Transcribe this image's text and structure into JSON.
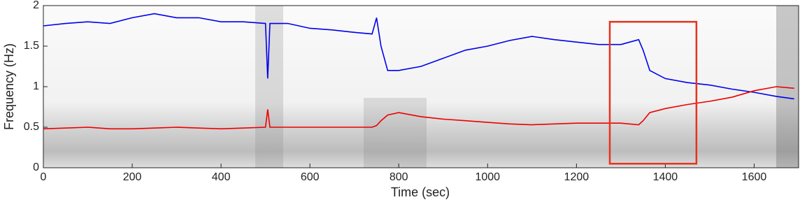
{
  "chart_data": {
    "type": "line",
    "x_label": "Time (sec)",
    "y_label": "Frequency (Hz)",
    "x": [
      0,
      50,
      100,
      150,
      200,
      250,
      300,
      350,
      400,
      450,
      500,
      505,
      510,
      550,
      600,
      650,
      700,
      740,
      750,
      760,
      775,
      800,
      850,
      900,
      950,
      1000,
      1050,
      1100,
      1150,
      1200,
      1250,
      1300,
      1340,
      1350,
      1365,
      1400,
      1450,
      1500,
      1550,
      1600,
      1650,
      1690
    ],
    "series": [
      {
        "color": "#0000ee",
        "values": [
          1.75,
          1.78,
          1.8,
          1.78,
          1.85,
          1.9,
          1.85,
          1.85,
          1.8,
          1.8,
          1.78,
          1.1,
          1.78,
          1.78,
          1.72,
          1.7,
          1.67,
          1.65,
          1.85,
          1.5,
          1.2,
          1.2,
          1.25,
          1.35,
          1.45,
          1.5,
          1.57,
          1.62,
          1.58,
          1.55,
          1.52,
          1.52,
          1.58,
          1.45,
          1.2,
          1.1,
          1.05,
          1.02,
          0.97,
          0.93,
          0.88,
          0.85
        ]
      },
      {
        "color": "#ee0000",
        "values": [
          0.48,
          0.49,
          0.5,
          0.48,
          0.48,
          0.49,
          0.5,
          0.49,
          0.48,
          0.49,
          0.5,
          0.72,
          0.5,
          0.5,
          0.5,
          0.5,
          0.5,
          0.5,
          0.52,
          0.58,
          0.65,
          0.68,
          0.63,
          0.6,
          0.58,
          0.56,
          0.54,
          0.53,
          0.54,
          0.55,
          0.55,
          0.55,
          0.53,
          0.58,
          0.68,
          0.73,
          0.78,
          0.82,
          0.87,
          0.95,
          1.0,
          0.98
        ]
      }
    ],
    "highlight": {
      "x": [
        1275,
        1470
      ],
      "y": [
        0.05,
        1.8
      ],
      "color": "#e8321e"
    },
    "xlim": [
      0,
      1700
    ],
    "xticks": [
      0,
      200,
      400,
      600,
      800,
      1000,
      1200,
      1400,
      1600
    ],
    "ylim": [
      0,
      2
    ],
    "yticks": [
      0,
      0.5,
      1,
      1.5,
      2
    ]
  }
}
